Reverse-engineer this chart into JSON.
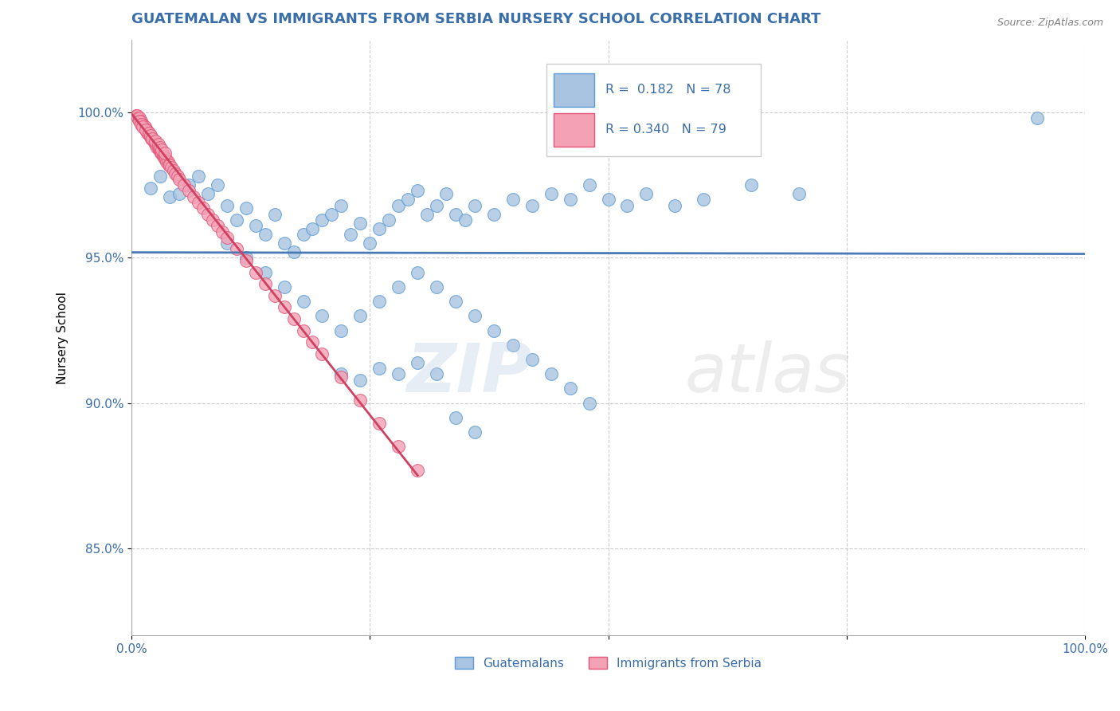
{
  "title": "GUATEMALAN VS IMMIGRANTS FROM SERBIA NURSERY SCHOOL CORRELATION CHART",
  "source": "Source: ZipAtlas.com",
  "ylabel": "Nursery School",
  "xlim": [
    0.0,
    1.0
  ],
  "ylim": [
    0.82,
    1.025
  ],
  "yticks": [
    0.85,
    0.9,
    0.95,
    1.0
  ],
  "ytick_labels": [
    "85.0%",
    "90.0%",
    "95.0%",
    "100.0%"
  ],
  "xticks": [
    0.0,
    0.25,
    0.5,
    0.75,
    1.0
  ],
  "xtick_labels": [
    "0.0%",
    "",
    "",
    "",
    "100.0%"
  ],
  "legend_labels": [
    "Guatemalans",
    "Immigrants from Serbia"
  ],
  "blue_color": "#a8c4e0",
  "pink_color": "#f4a0b5",
  "blue_edge_color": "#5b9bd5",
  "pink_edge_color": "#e05878",
  "blue_line_color": "#4a7ab5",
  "pink_line_color": "#d04060",
  "R_blue": "0.182",
  "N_blue": "78",
  "R_pink": "0.340",
  "N_pink": "79",
  "legend_text_color": "#3a6ea8",
  "title_color": "#3a6ea8",
  "blue_scatter_x": [
    0.02,
    0.03,
    0.04,
    0.05,
    0.06,
    0.07,
    0.08,
    0.09,
    0.1,
    0.11,
    0.12,
    0.13,
    0.14,
    0.15,
    0.16,
    0.17,
    0.18,
    0.19,
    0.2,
    0.21,
    0.22,
    0.23,
    0.24,
    0.25,
    0.26,
    0.27,
    0.28,
    0.29,
    0.3,
    0.31,
    0.32,
    0.33,
    0.34,
    0.35,
    0.36,
    0.38,
    0.4,
    0.42,
    0.44,
    0.46,
    0.48,
    0.5,
    0.52,
    0.54,
    0.57,
    0.6,
    0.65,
    0.7,
    0.95,
    0.1,
    0.12,
    0.14,
    0.16,
    0.18,
    0.2,
    0.22,
    0.24,
    0.26,
    0.28,
    0.3,
    0.32,
    0.34,
    0.36,
    0.38,
    0.4,
    0.42,
    0.44,
    0.46,
    0.48,
    0.22,
    0.24,
    0.26,
    0.28,
    0.3,
    0.32,
    0.34,
    0.36
  ],
  "blue_scatter_y": [
    0.974,
    0.978,
    0.971,
    0.972,
    0.975,
    0.978,
    0.972,
    0.975,
    0.968,
    0.963,
    0.967,
    0.961,
    0.958,
    0.965,
    0.955,
    0.952,
    0.958,
    0.96,
    0.963,
    0.965,
    0.968,
    0.958,
    0.962,
    0.955,
    0.96,
    0.963,
    0.968,
    0.97,
    0.973,
    0.965,
    0.968,
    0.972,
    0.965,
    0.963,
    0.968,
    0.965,
    0.97,
    0.968,
    0.972,
    0.97,
    0.975,
    0.97,
    0.968,
    0.972,
    0.968,
    0.97,
    0.975,
    0.972,
    0.998,
    0.955,
    0.95,
    0.945,
    0.94,
    0.935,
    0.93,
    0.925,
    0.93,
    0.935,
    0.94,
    0.945,
    0.94,
    0.935,
    0.93,
    0.925,
    0.92,
    0.915,
    0.91,
    0.905,
    0.9,
    0.91,
    0.908,
    0.912,
    0.91,
    0.914,
    0.91,
    0.895,
    0.89
  ],
  "pink_scatter_x": [
    0.005,
    0.006,
    0.007,
    0.008,
    0.009,
    0.01,
    0.011,
    0.012,
    0.013,
    0.014,
    0.015,
    0.016,
    0.017,
    0.018,
    0.019,
    0.02,
    0.021,
    0.022,
    0.023,
    0.024,
    0.025,
    0.026,
    0.027,
    0.028,
    0.029,
    0.03,
    0.031,
    0.032,
    0.033,
    0.034,
    0.035,
    0.036,
    0.037,
    0.038,
    0.039,
    0.04,
    0.042,
    0.044,
    0.046,
    0.048,
    0.05,
    0.055,
    0.06,
    0.065,
    0.07,
    0.075,
    0.08,
    0.085,
    0.09,
    0.095,
    0.1,
    0.11,
    0.12,
    0.13,
    0.14,
    0.15,
    0.16,
    0.17,
    0.18,
    0.19,
    0.2,
    0.22,
    0.24,
    0.26,
    0.28,
    0.3,
    0.008,
    0.01,
    0.012,
    0.015,
    0.018,
    0.02,
    0.022,
    0.025,
    0.028,
    0.03,
    0.032,
    0.035
  ],
  "pink_scatter_y": [
    0.999,
    0.999,
    0.998,
    0.998,
    0.997,
    0.997,
    0.996,
    0.996,
    0.995,
    0.995,
    0.994,
    0.994,
    0.993,
    0.993,
    0.992,
    0.992,
    0.991,
    0.991,
    0.99,
    0.99,
    0.989,
    0.989,
    0.988,
    0.988,
    0.987,
    0.987,
    0.986,
    0.986,
    0.985,
    0.985,
    0.984,
    0.984,
    0.983,
    0.983,
    0.982,
    0.982,
    0.981,
    0.98,
    0.979,
    0.978,
    0.977,
    0.975,
    0.973,
    0.971,
    0.969,
    0.967,
    0.965,
    0.963,
    0.961,
    0.959,
    0.957,
    0.953,
    0.949,
    0.945,
    0.941,
    0.937,
    0.933,
    0.929,
    0.925,
    0.921,
    0.917,
    0.909,
    0.901,
    0.893,
    0.885,
    0.877,
    0.997,
    0.996,
    0.995,
    0.994,
    0.993,
    0.992,
    0.991,
    0.99,
    0.989,
    0.988,
    0.987,
    0.986
  ]
}
